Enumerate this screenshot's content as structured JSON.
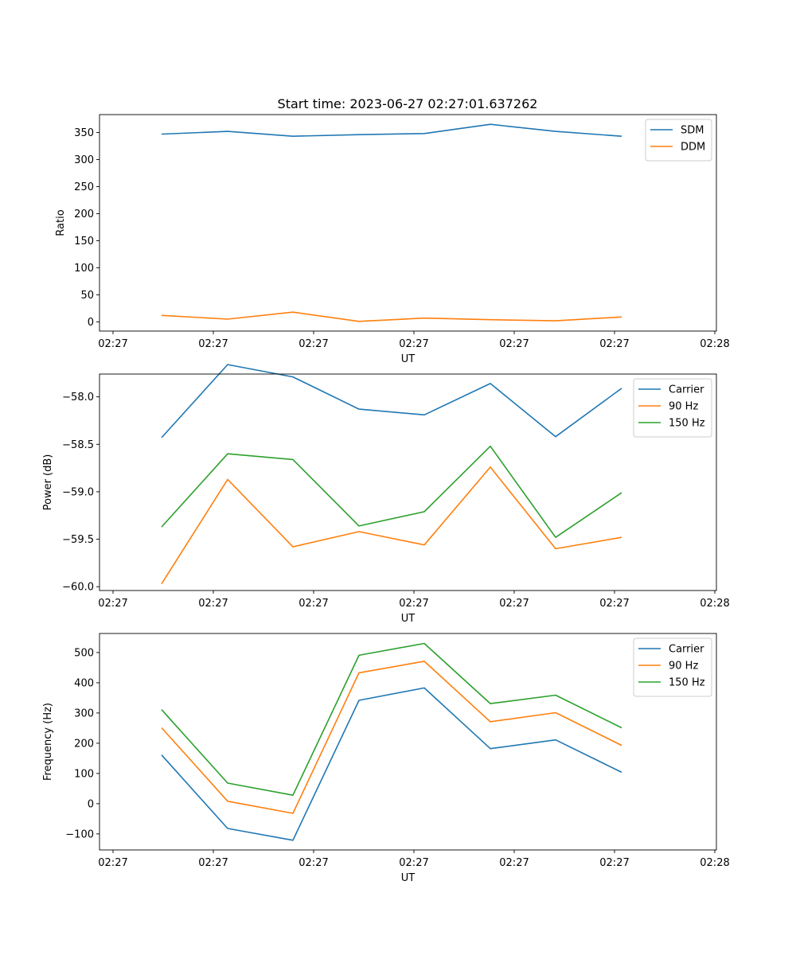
{
  "title": "Start time: 2023-06-27 02:27:01.637262",
  "chart_data": [
    {
      "type": "line",
      "xlabel": "UT",
      "ylabel": "Ratio",
      "x_tick_labels": [
        "02:27",
        "02:27",
        "02:27",
        "02:27",
        "02:27",
        "02:27",
        "02:28"
      ],
      "y_ticks": [
        0,
        50,
        100,
        150,
        200,
        250,
        300,
        350
      ],
      "ylim": [
        -17,
        383
      ],
      "legend_position": "top-right",
      "series": [
        {
          "name": "SDM",
          "color": "#1f77b4",
          "values": [
            347,
            352,
            343,
            346,
            348,
            365,
            352,
            343
          ]
        },
        {
          "name": "DDM",
          "color": "#ff7f0e",
          "values": [
            12,
            5,
            18,
            1,
            7,
            4,
            2,
            9
          ]
        }
      ]
    },
    {
      "type": "line",
      "xlabel": "UT",
      "ylabel": "Power (dB)",
      "x_tick_labels": [
        "02:27",
        "02:27",
        "02:27",
        "02:27",
        "02:27",
        "02:27",
        "02:28"
      ],
      "y_ticks": [
        -60.0,
        -59.5,
        -59.0,
        -58.5,
        -58.0
      ],
      "y_tick_labels": [
        "−60.0",
        "−59.5",
        "−59.0",
        "−58.5",
        "−58.0"
      ],
      "ylim": [
        -60.04,
        -57.76
      ],
      "legend_position": "top-right",
      "series": [
        {
          "name": "Carrier",
          "color": "#1f77b4",
          "values": [
            -58.43,
            -57.66,
            -57.79,
            -58.13,
            -58.19,
            -57.86,
            -58.42,
            -57.91
          ]
        },
        {
          "name": "90 Hz",
          "color": "#ff7f0e",
          "values": [
            -59.97,
            -58.87,
            -59.58,
            -59.42,
            -59.56,
            -58.74,
            -59.6,
            -59.48
          ]
        },
        {
          "name": "150 Hz",
          "color": "#2ca02c",
          "values": [
            -59.37,
            -58.6,
            -58.66,
            -59.36,
            -59.21,
            -58.52,
            -59.48,
            -59.01
          ]
        }
      ]
    },
    {
      "type": "line",
      "xlabel": "UT",
      "ylabel": "Frequency (Hz)",
      "x_tick_labels": [
        "02:27",
        "02:27",
        "02:27",
        "02:27",
        "02:27",
        "02:27",
        "02:28"
      ],
      "y_ticks": [
        -100,
        0,
        100,
        200,
        300,
        400,
        500
      ],
      "y_tick_labels": [
        "−100",
        "0",
        "100",
        "200",
        "300",
        "400",
        "500"
      ],
      "ylim": [
        -153,
        563
      ],
      "legend_position": "top-right",
      "series": [
        {
          "name": "Carrier",
          "color": "#1f77b4",
          "values": [
            161,
            -82,
            -121,
            342,
            383,
            182,
            211,
            104
          ]
        },
        {
          "name": "90 Hz",
          "color": "#ff7f0e",
          "values": [
            251,
            8,
            -32,
            433,
            471,
            271,
            301,
            193
          ]
        },
        {
          "name": "150 Hz",
          "color": "#2ca02c",
          "values": [
            311,
            68,
            28,
            491,
            530,
            331,
            359,
            251
          ]
        }
      ]
    }
  ]
}
